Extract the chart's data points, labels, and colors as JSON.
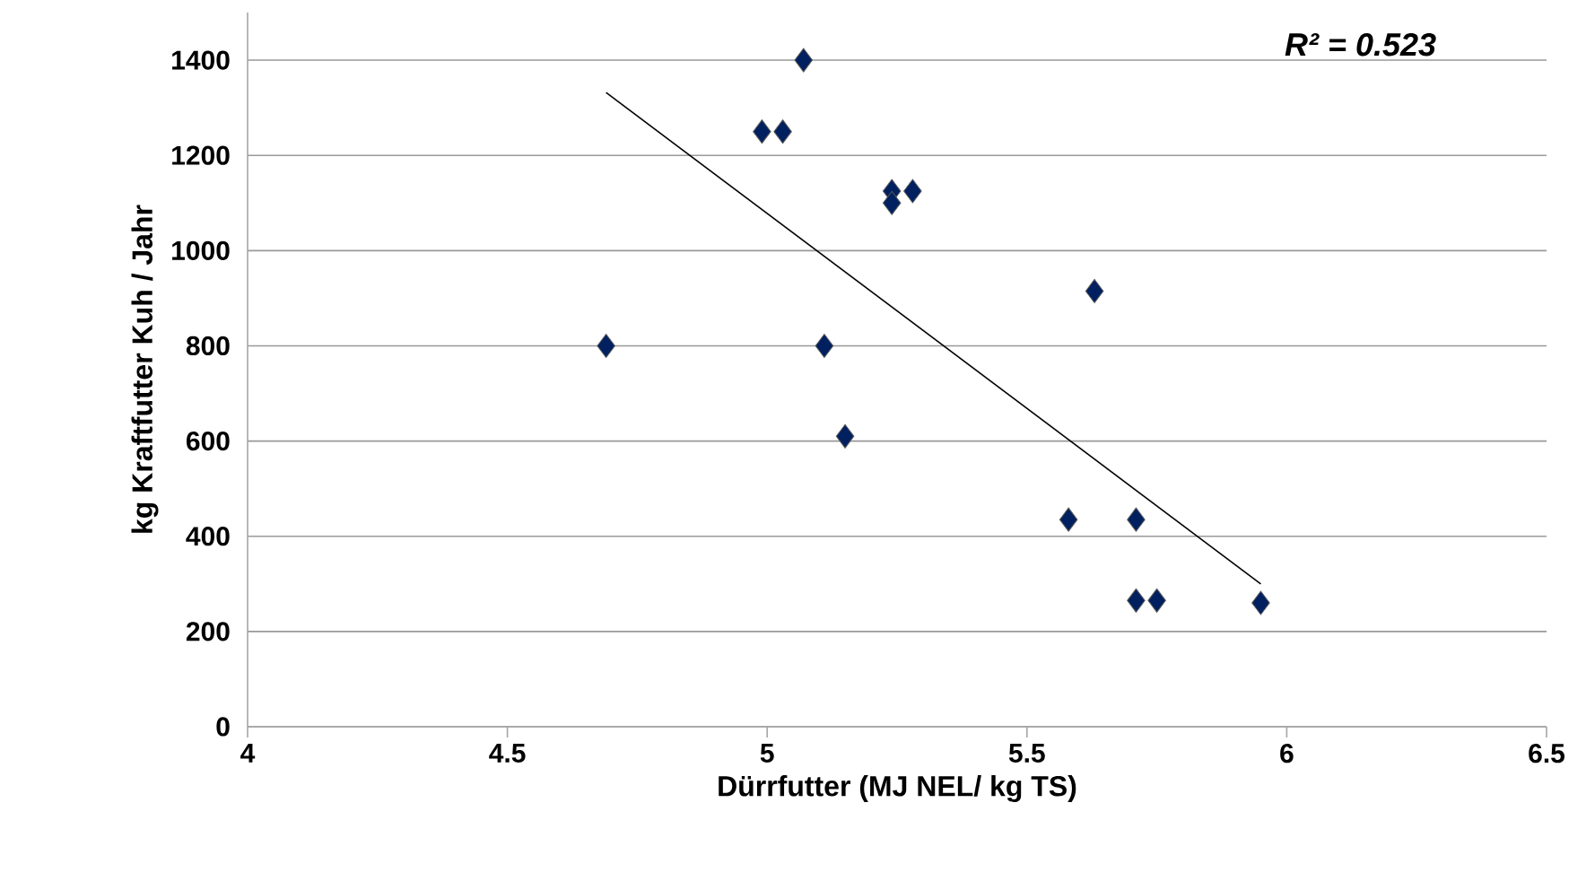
{
  "chart_data": {
    "type": "scatter",
    "xlabel": "Dürrfutter (MJ NEL/ kg TS)",
    "ylabel": "kg Kraftfutter Kuh / Jahr",
    "annotations": [
      "R² = 0.523"
    ],
    "series": [
      {
        "color": "#002060",
        "marker": "diamond",
        "x": [
          5.07,
          4.99,
          5.03,
          5.24,
          5.28,
          5.24,
          5.63,
          4.69,
          5.11,
          5.15,
          5.58,
          5.71,
          5.71,
          5.75,
          5.95
        ],
        "values": [
          1400,
          1250,
          1250,
          1125,
          1125,
          1100,
          915,
          800,
          800,
          610,
          435,
          435,
          265,
          265,
          260
        ]
      },
      {
        "type": "line",
        "color": "#000000",
        "marker": "none",
        "x": [
          4.69,
          5.95
        ],
        "values": [
          1332,
          300
        ]
      }
    ],
    "xlim": [
      4,
      6.5
    ],
    "xticks": [
      4,
      4.5,
      5,
      5.5,
      6,
      6.5
    ],
    "ylim": [
      0,
      1500
    ],
    "yticks": [
      0,
      200,
      400,
      600,
      800,
      1000,
      1200,
      1400
    ],
    "grid": "y"
  }
}
